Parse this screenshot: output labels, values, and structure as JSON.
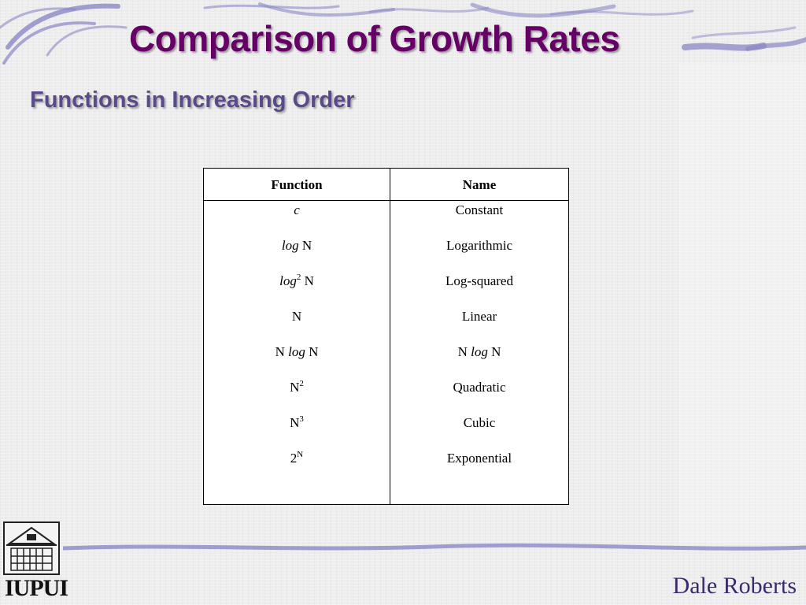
{
  "slide": {
    "title": "Comparison of Growth Rates",
    "subtitle": "Functions in Increasing Order",
    "author": "Dale Roberts",
    "logo_text": "IUPUI"
  },
  "table": {
    "headers": {
      "function": "Function",
      "name": "Name"
    },
    "rows": [
      {
        "function_parts": {
          "italic": "c"
        },
        "name": "Constant"
      },
      {
        "function_parts": {
          "italic": "log",
          "after": " N"
        },
        "name": "Logarithmic"
      },
      {
        "function_parts": {
          "italic": "log",
          "sup": "2",
          "after": " N"
        },
        "name": "Log-squared"
      },
      {
        "function_parts": {
          "after": "N"
        },
        "name": "Linear"
      },
      {
        "function_parts": {
          "before": "N ",
          "italic": "log",
          "after": " N"
        },
        "name_parts": {
          "before": "N ",
          "italic": "log",
          "after": " N"
        }
      },
      {
        "function_parts": {
          "after": "N",
          "sup": "2"
        },
        "name": "Quadratic"
      },
      {
        "function_parts": {
          "after": "N",
          "sup": "3"
        },
        "name": "Cubic"
      },
      {
        "function_parts": {
          "after": "2",
          "sup": "N"
        },
        "name": "Exponential"
      }
    ]
  },
  "colors": {
    "title": "#660066",
    "subtitle": "#5a4a8a",
    "author": "#3a2a6a",
    "swirl": "#8a88c4"
  }
}
